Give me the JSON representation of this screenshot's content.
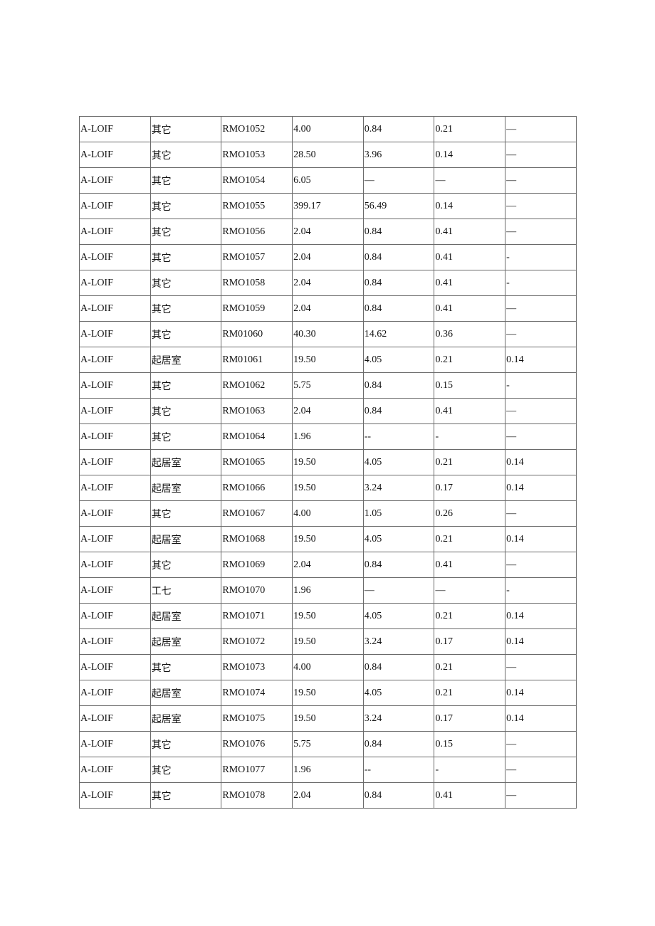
{
  "table": {
    "rows": [
      [
        "A-LOIF",
        "其它",
        "RMO1052",
        "4.00",
        "0.84",
        "0.21",
        "—"
      ],
      [
        "A-LOIF",
        "其它",
        "RMO1053",
        "28.50",
        "3.96",
        "0.14",
        "—"
      ],
      [
        "A-LOIF",
        "其它",
        "RMO1054",
        "6.05",
        "—",
        "—",
        "—"
      ],
      [
        "A-LOIF",
        "其它",
        "RMO1055",
        "399.17",
        "56.49",
        "0.14",
        "—"
      ],
      [
        "A-LOIF",
        "其它",
        "RMO1056",
        "2.04",
        "0.84",
        "0.41",
        "—"
      ],
      [
        "A-LOIF",
        "其它",
        "RMO1057",
        "2.04",
        "0.84",
        "0.41",
        "-"
      ],
      [
        "A-LOIF",
        "其它",
        "RMO1058",
        "2.04",
        "0.84",
        "0.41",
        "-"
      ],
      [
        "A-LOIF",
        "其它",
        "RMO1059",
        "2.04",
        "0.84",
        "0.41",
        "—"
      ],
      [
        "A-LOIF",
        "其它",
        "RM01060",
        "40.30",
        "14.62",
        "0.36",
        "—"
      ],
      [
        "A-LOIF",
        "起居室",
        "RM01061",
        "19.50",
        "4.05",
        "0.21",
        "0.14"
      ],
      [
        "A-LOIF",
        "其它",
        "RMO1062",
        "5.75",
        "0.84",
        "0.15",
        "-"
      ],
      [
        "A-LOIF",
        "其它",
        "RMO1063",
        "2.04",
        "0.84",
        "0.41",
        "—"
      ],
      [
        "A-LOIF",
        "其它",
        "RMO1064",
        "1.96",
        "--",
        "-",
        "—"
      ],
      [
        "A-LOIF",
        "起居室",
        "RMO1065",
        "19.50",
        "4.05",
        "0.21",
        "0.14"
      ],
      [
        "A-LOIF",
        "起居室",
        "RMO1066",
        "19.50",
        "3.24",
        "0.17",
        "0.14"
      ],
      [
        "A-LOIF",
        "其它",
        "RMO1067",
        "4.00",
        "1.05",
        "0.26",
        "—"
      ],
      [
        "A-LOIF",
        "起居室",
        "RMO1068",
        "19.50",
        "4.05",
        "0.21",
        "0.14"
      ],
      [
        "A-LOIF",
        "其它",
        "RMO1069",
        "2.04",
        "0.84",
        "0.41",
        "—"
      ],
      [
        "A-LOIF",
        "工七",
        "RMO1070",
        "1.96",
        "—",
        "—",
        "-"
      ],
      [
        "A-LOIF",
        "起居室",
        "RMO1071",
        "19.50",
        "4.05",
        "0.21",
        "0.14"
      ],
      [
        "A-LOIF",
        "起居室",
        "RMO1072",
        "19.50",
        "3.24",
        "0.17",
        "0.14"
      ],
      [
        "A-LOIF",
        "其它",
        "RMO1073",
        "4.00",
        "0.84",
        "0.21",
        "—"
      ],
      [
        "A-LOIF",
        "起居室",
        "RMO1074",
        "19.50",
        "4.05",
        "0.21",
        "0.14"
      ],
      [
        "A-LOIF",
        "起居室",
        "RMO1075",
        "19.50",
        "3.24",
        "0.17",
        "0.14"
      ],
      [
        "A-LOIF",
        "其它",
        "RMO1076",
        "5.75",
        "0.84",
        "0.15",
        "—"
      ],
      [
        "A-LOIF",
        "其它",
        "RMO1077",
        "1.96",
        "--",
        "-",
        "—"
      ],
      [
        "A-LOIF",
        "其它",
        "RMO1078",
        "2.04",
        "0.84",
        "0.41",
        "—"
      ]
    ]
  }
}
